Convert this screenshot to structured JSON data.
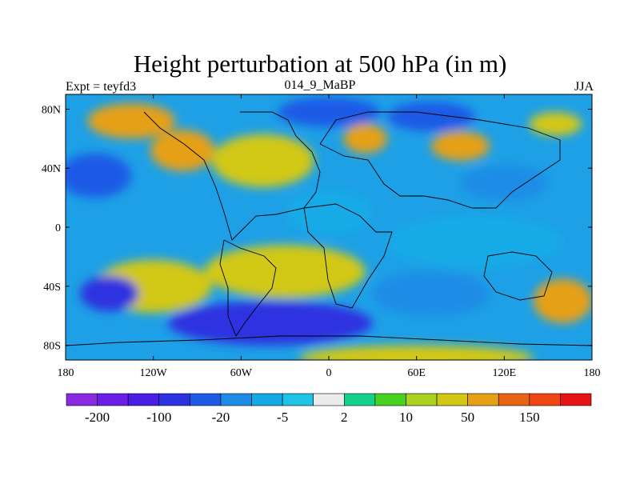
{
  "chart_data": {
    "type": "heatmap",
    "title": "Height perturbation at 500 hPa (in m)",
    "subtitle_left": "Expt = teyfd3",
    "subtitle_center": "014_9_MaBP",
    "subtitle_right": "JJA",
    "xlim": [
      -180,
      180
    ],
    "ylim": [
      -90,
      90
    ],
    "x_ticks": [
      {
        "value": -180,
        "label": "180"
      },
      {
        "value": -120,
        "label": "120W"
      },
      {
        "value": -60,
        "label": "60W"
      },
      {
        "value": 0,
        "label": "0"
      },
      {
        "value": 60,
        "label": "60E"
      },
      {
        "value": 120,
        "label": "120E"
      },
      {
        "value": 180,
        "label": "180"
      }
    ],
    "y_ticks": [
      {
        "value": 80,
        "label": "80N"
      },
      {
        "value": 40,
        "label": "40N"
      },
      {
        "value": 0,
        "label": "0"
      },
      {
        "value": -40,
        "label": "40S"
      },
      {
        "value": -80,
        "label": "80S"
      }
    ],
    "colorbar": {
      "colors": [
        "#8a2be2",
        "#6a1ee6",
        "#4b1ee6",
        "#2d32e0",
        "#1e5ae6",
        "#1e8ce6",
        "#14aae6",
        "#1ec3e6",
        "#ebebeb",
        "#14d28c",
        "#46d21e",
        "#aad21e",
        "#d2c814",
        "#e6a014",
        "#e66414",
        "#f04614",
        "#e61414"
      ],
      "labels": [
        {
          "index": 1,
          "text": "-200"
        },
        {
          "index": 3,
          "text": "-100"
        },
        {
          "index": 5,
          "text": "-20"
        },
        {
          "index": 7,
          "text": "-5"
        },
        {
          "index": 9,
          "text": "2"
        },
        {
          "index": 11,
          "text": "10"
        },
        {
          "index": 13,
          "text": "50"
        },
        {
          "index": 15,
          "text": "150"
        }
      ]
    },
    "field_regions": [
      {
        "lon": -135,
        "lat": 72,
        "rx": 30,
        "ry": 12,
        "value": 50
      },
      {
        "lon": -100,
        "lat": 52,
        "rx": 22,
        "ry": 14,
        "value": 80
      },
      {
        "lon": -45,
        "lat": 45,
        "rx": 35,
        "ry": 18,
        "value": 40
      },
      {
        "lon": 25,
        "lat": 60,
        "rx": 15,
        "ry": 10,
        "value": 60
      },
      {
        "lon": 90,
        "lat": 55,
        "rx": 20,
        "ry": 10,
        "value": 50
      },
      {
        "lon": 155,
        "lat": 70,
        "rx": 18,
        "ry": 8,
        "value": 20
      },
      {
        "lon": -120,
        "lat": -40,
        "rx": 40,
        "ry": 18,
        "value": 40
      },
      {
        "lon": -30,
        "lat": -30,
        "rx": 55,
        "ry": 18,
        "value": 40
      },
      {
        "lon": 160,
        "lat": -50,
        "rx": 20,
        "ry": 15,
        "value": 60
      },
      {
        "lon": 60,
        "lat": -88,
        "rx": 80,
        "ry": 8,
        "value": 30
      },
      {
        "lon": 0,
        "lat": 78,
        "rx": 35,
        "ry": 10,
        "value": -40
      },
      {
        "lon": -160,
        "lat": 35,
        "rx": 25,
        "ry": 15,
        "value": -40
      },
      {
        "lon": 70,
        "lat": 75,
        "rx": 30,
        "ry": 10,
        "value": -50
      },
      {
        "lon": 120,
        "lat": 30,
        "rx": 30,
        "ry": 12,
        "value": -20
      },
      {
        "lon": -150,
        "lat": -45,
        "rx": 20,
        "ry": 12,
        "value": -60
      },
      {
        "lon": -40,
        "lat": -65,
        "rx": 70,
        "ry": 15,
        "value": -60
      },
      {
        "lon": 70,
        "lat": -45,
        "rx": 40,
        "ry": 15,
        "value": -20
      },
      {
        "lon": 100,
        "lat": -10,
        "rx": 60,
        "ry": 18,
        "value": -6
      },
      {
        "lon": 0,
        "lat": 10,
        "rx": 30,
        "ry": 15,
        "value": -6
      }
    ]
  }
}
